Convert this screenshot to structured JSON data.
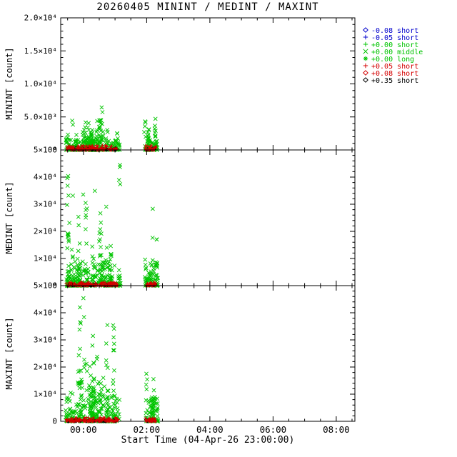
{
  "title": "20260405 MININT / MEDINT / MAXINT",
  "xlabel": "Start Time (04-Apr-26 23:00:00)",
  "colors": {
    "blue": "#0000cc",
    "green": "#00c400",
    "red": "#d40000",
    "black": "#000000"
  },
  "legend": {
    "items": [
      {
        "marker": "diamond",
        "color": "blue",
        "label": "-0.08 short"
      },
      {
        "marker": "plus",
        "color": "blue",
        "label": "-0.05 short"
      },
      {
        "marker": "plus",
        "color": "green",
        "label": "+0.00 short"
      },
      {
        "marker": "cross",
        "color": "green",
        "label": "+0.00 middle"
      },
      {
        "marker": "asterisk",
        "color": "green",
        "label": "+0.00 long"
      },
      {
        "marker": "plus",
        "color": "red",
        "label": "+0.05 short"
      },
      {
        "marker": "diamond",
        "color": "red",
        "label": "+0.08 short"
      },
      {
        "marker": "diamond",
        "color": "black",
        "label": "+0.35 short"
      }
    ]
  },
  "chart_data": [
    {
      "id": "minint",
      "type": "scatter",
      "ylabel": "MININT [count]",
      "ylim": [
        0,
        20000
      ],
      "yticks": [
        {
          "v": 0,
          "label": "0"
        },
        {
          "v": 5000,
          "label": "5.0×10³"
        },
        {
          "v": 10000,
          "label": "1.0×10⁴"
        },
        {
          "v": 15000,
          "label": "1.5×10⁴"
        },
        {
          "v": 20000,
          "label": "2.0×10⁴"
        }
      ],
      "y_minor_step": 1000,
      "xlim": [
        -0.72,
        8.59
      ],
      "xticks": [
        {
          "v": 0,
          "label": "00:00"
        },
        {
          "v": 2,
          "label": "02:00"
        },
        {
          "v": 4,
          "label": "04:00"
        },
        {
          "v": 6,
          "label": "06:00"
        },
        {
          "v": 8,
          "label": "08:00"
        }
      ],
      "x_minor_step": 0.5,
      "show_x_labels": false,
      "series": [
        {
          "name": "minint-middle",
          "marker": "cross",
          "color": "green",
          "size": 2.6,
          "clusters": [
            {
              "t": [
                -0.55,
                1.15
              ],
              "bursts": 26,
              "points": [
                4,
                14
              ],
              "vmax": 6500,
              "bias": 2.2
            },
            {
              "t": [
                1.95,
                2.35
              ],
              "bursts": 7,
              "points": [
                5,
                14
              ],
              "vmax": 6300,
              "bias": 2.2
            }
          ],
          "scatter": [
            {
              "t": [
                -0.55,
                1.15
              ],
              "n": 110,
              "vmax": 1600,
              "bias": 2.0
            },
            {
              "t": [
                1.95,
                2.35
              ],
              "n": 28,
              "vmax": 1600,
              "bias": 2.0
            }
          ]
        },
        {
          "name": "minint-blue",
          "marker": "plus",
          "color": "blue",
          "size": 2.0,
          "scatter": [
            {
              "t": [
                -0.5,
                1.0
              ],
              "n": 10,
              "vmax": 250,
              "bias": 2.0
            }
          ]
        },
        {
          "name": "minint-black",
          "marker": "diamond",
          "color": "black",
          "size": 2.0,
          "scatter": [
            {
              "t": [
                -0.52,
                1.05
              ],
              "n": 45,
              "vmax": 380,
              "bias": 2.4
            },
            {
              "t": [
                1.97,
                2.3
              ],
              "n": 12,
              "vmax": 380,
              "bias": 2.4
            }
          ]
        },
        {
          "name": "minint-red",
          "marker": "plus",
          "color": "red",
          "size": 2.2,
          "scatter": [
            {
              "t": [
                -0.55,
                1.1
              ],
              "n": 150,
              "vmax": 750,
              "bias": 2.6
            },
            {
              "t": [
                1.95,
                2.3
              ],
              "n": 40,
              "vmax": 750,
              "bias": 2.6
            }
          ]
        }
      ]
    },
    {
      "id": "medint",
      "type": "scatter",
      "ylabel": "MEDINT [count]",
      "ylim": [
        0,
        50000
      ],
      "yticks": [
        {
          "v": 0,
          "label": "0"
        },
        {
          "v": 10000,
          "label": "1×10⁴"
        },
        {
          "v": 20000,
          "label": "2×10⁴"
        },
        {
          "v": 30000,
          "label": "3×10⁴"
        },
        {
          "v": 40000,
          "label": "4×10⁴"
        },
        {
          "v": 50000,
          "label": "5×10⁴"
        }
      ],
      "y_minor_step": 2000,
      "xlim": [
        -0.72,
        8.59
      ],
      "xticks": [
        {
          "v": 0,
          "label": "00:00"
        },
        {
          "v": 2,
          "label": "02:00"
        },
        {
          "v": 4,
          "label": "04:00"
        },
        {
          "v": 6,
          "label": "06:00"
        },
        {
          "v": 8,
          "label": "08:00"
        }
      ],
      "x_minor_step": 0.5,
      "show_x_labels": false,
      "series": [
        {
          "name": "medint-middle",
          "marker": "cross",
          "color": "green",
          "size": 2.6,
          "clusters": [
            {
              "t": [
                -0.55,
                1.15
              ],
              "bursts": 26,
              "points": [
                4,
                14
              ],
              "vmax": 46000,
              "bias": 2.6
            },
            {
              "t": [
                1.95,
                2.35
              ],
              "bursts": 7,
              "points": [
                5,
                14
              ],
              "vmax": 29000,
              "bias": 2.4
            }
          ],
          "scatter": [
            {
              "t": [
                -0.55,
                1.15
              ],
              "n": 110,
              "vmax": 9000,
              "bias": 2.2
            },
            {
              "t": [
                1.95,
                2.35
              ],
              "n": 28,
              "vmax": 9000,
              "bias": 2.2
            }
          ]
        },
        {
          "name": "medint-blue",
          "marker": "plus",
          "color": "blue",
          "size": 2.0,
          "scatter": [
            {
              "t": [
                -0.5,
                1.0
              ],
              "n": 10,
              "vmax": 300,
              "bias": 2.0
            }
          ]
        },
        {
          "name": "medint-black",
          "marker": "diamond",
          "color": "black",
          "size": 2.0,
          "scatter": [
            {
              "t": [
                -0.52,
                1.05
              ],
              "n": 45,
              "vmax": 600,
              "bias": 2.4
            },
            {
              "t": [
                1.97,
                2.3
              ],
              "n": 12,
              "vmax": 600,
              "bias": 2.4
            }
          ]
        },
        {
          "name": "medint-red",
          "marker": "plus",
          "color": "red",
          "size": 2.2,
          "scatter": [
            {
              "t": [
                -0.55,
                1.1
              ],
              "n": 150,
              "vmax": 1400,
              "bias": 2.6
            },
            {
              "t": [
                1.95,
                2.3
              ],
              "n": 40,
              "vmax": 1400,
              "bias": 2.6
            }
          ]
        }
      ]
    },
    {
      "id": "maxint",
      "type": "scatter",
      "ylabel": "MAXINT [count]",
      "ylim": [
        0,
        50000
      ],
      "yticks": [
        {
          "v": 0,
          "label": "0"
        },
        {
          "v": 10000,
          "label": "1×10⁴"
        },
        {
          "v": 20000,
          "label": "2×10⁴"
        },
        {
          "v": 30000,
          "label": "3×10⁴"
        },
        {
          "v": 40000,
          "label": "4×10⁴"
        },
        {
          "v": 50000,
          "label": "5×10⁴"
        }
      ],
      "y_minor_step": 2000,
      "xlim": [
        -0.72,
        8.59
      ],
      "xticks": [
        {
          "v": 0,
          "label": "00:00"
        },
        {
          "v": 2,
          "label": "02:00"
        },
        {
          "v": 4,
          "label": "04:00"
        },
        {
          "v": 6,
          "label": "06:00"
        },
        {
          "v": 8,
          "label": "08:00"
        }
      ],
      "x_minor_step": 0.5,
      "show_x_labels": true,
      "series": [
        {
          "name": "maxint-middle",
          "marker": "cross",
          "color": "green",
          "size": 2.6,
          "clusters": [
            {
              "t": [
                -0.55,
                1.15
              ],
              "bursts": 26,
              "points": [
                4,
                14
              ],
              "vmax": 47000,
              "bias": 2.5
            },
            {
              "t": [
                1.95,
                2.35
              ],
              "bursts": 7,
              "points": [
                5,
                14
              ],
              "vmax": 22000,
              "bias": 2.3
            }
          ],
          "scatter": [
            {
              "t": [
                -0.55,
                1.15
              ],
              "n": 110,
              "vmax": 10000,
              "bias": 2.2
            },
            {
              "t": [
                1.95,
                2.35
              ],
              "n": 28,
              "vmax": 10000,
              "bias": 2.2
            }
          ]
        },
        {
          "name": "maxint-blue",
          "marker": "plus",
          "color": "blue",
          "size": 2.0,
          "scatter": [
            {
              "t": [
                -0.5,
                1.0
              ],
              "n": 10,
              "vmax": 350,
              "bias": 2.0
            }
          ]
        },
        {
          "name": "maxint-black",
          "marker": "diamond",
          "color": "black",
          "size": 2.0,
          "scatter": [
            {
              "t": [
                -0.52,
                1.05
              ],
              "n": 45,
              "vmax": 700,
              "bias": 2.4
            },
            {
              "t": [
                1.97,
                2.3
              ],
              "n": 12,
              "vmax": 700,
              "bias": 2.4
            }
          ]
        },
        {
          "name": "maxint-red",
          "marker": "plus",
          "color": "red",
          "size": 2.2,
          "scatter": [
            {
              "t": [
                -0.55,
                1.1
              ],
              "n": 150,
              "vmax": 1500,
              "bias": 2.6
            },
            {
              "t": [
                1.95,
                2.3
              ],
              "n": 40,
              "vmax": 1500,
              "bias": 2.6
            }
          ]
        }
      ]
    }
  ]
}
